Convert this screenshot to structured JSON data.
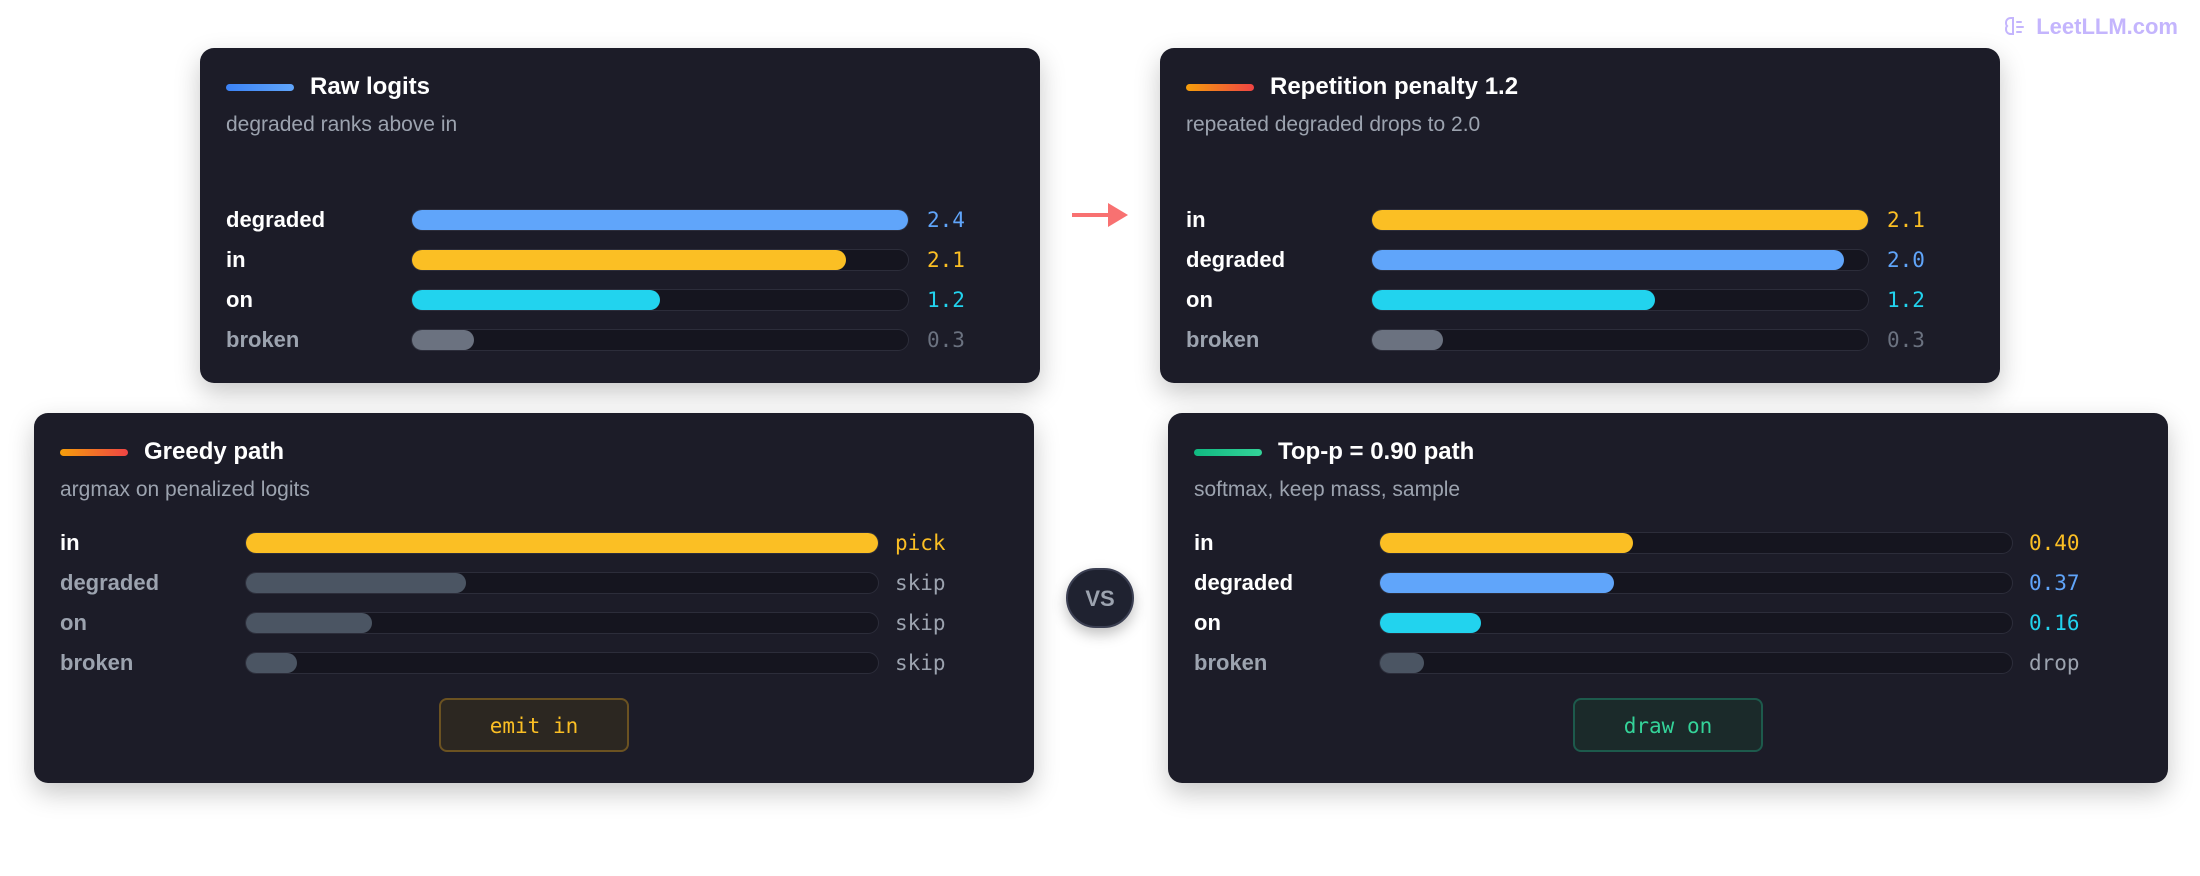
{
  "brand": {
    "text": "LeetLLM.com"
  },
  "arrow": {
    "color": "#f87171"
  },
  "vs_label": "VS",
  "panels": {
    "raw": {
      "title": "Raw logits",
      "subtitle": "degraded ranks above in",
      "accent": [
        "#3b82f6",
        "#60a5fa"
      ],
      "max": 2.4,
      "rows": [
        {
          "label": "degraded",
          "value": 2.4,
          "value_text": "2.4",
          "color": "#60a5fa",
          "label_color": "#ffffff"
        },
        {
          "label": "in",
          "value": 2.1,
          "value_text": "2.1",
          "color": "#fbbf24",
          "label_color": "#ffffff"
        },
        {
          "label": "on",
          "value": 1.2,
          "value_text": "1.2",
          "color": "#22d3ee",
          "label_color": "#ffffff"
        },
        {
          "label": "broken",
          "value": 0.3,
          "value_text": "0.3",
          "color": "#6b7280",
          "label_color": "#9ca3af"
        }
      ]
    },
    "repetition": {
      "title": "Repetition penalty 1.2",
      "subtitle": "repeated degraded drops to 2.0",
      "accent": [
        "#f59e0b",
        "#ef4444"
      ],
      "max": 2.1,
      "rows": [
        {
          "label": "in",
          "value": 2.1,
          "value_text": "2.1",
          "color": "#fbbf24",
          "label_color": "#ffffff"
        },
        {
          "label": "degraded",
          "value": 2.0,
          "value_text": "2.0",
          "color": "#60a5fa",
          "label_color": "#ffffff"
        },
        {
          "label": "on",
          "value": 1.2,
          "value_text": "1.2",
          "color": "#22d3ee",
          "label_color": "#ffffff"
        },
        {
          "label": "broken",
          "value": 0.3,
          "value_text": "0.3",
          "color": "#6b7280",
          "label_color": "#9ca3af"
        }
      ]
    },
    "greedy": {
      "title": "Greedy path",
      "subtitle": "argmax on penalized logits",
      "accent": [
        "#f59e0b",
        "#ef4444"
      ],
      "max": 2.1,
      "rows": [
        {
          "label": "in",
          "value": 2.1,
          "value_text": "pick",
          "color": "#fbbf24",
          "label_color": "#ffffff",
          "value_color": "#fbbf24"
        },
        {
          "label": "degraded",
          "value": 0.73,
          "value_text": "skip",
          "color": "#4b5563",
          "label_color": "#9ca3af",
          "value_color": "#9ca3af"
        },
        {
          "label": "on",
          "value": 0.42,
          "value_text": "skip",
          "color": "#4b5563",
          "label_color": "#9ca3af",
          "value_color": "#9ca3af"
        },
        {
          "label": "broken",
          "value": 0.17,
          "value_text": "skip",
          "color": "#4b5563",
          "label_color": "#9ca3af",
          "value_color": "#9ca3af"
        }
      ],
      "emit": "emit in"
    },
    "topp": {
      "title": "Top-p = 0.90 path",
      "subtitle": "softmax, keep mass, sample",
      "accent": [
        "#10b981",
        "#34d399"
      ],
      "max": 1.0,
      "rows": [
        {
          "label": "in",
          "value": 0.4,
          "value_text": "0.40",
          "color": "#fbbf24",
          "label_color": "#ffffff"
        },
        {
          "label": "degraded",
          "value": 0.37,
          "value_text": "0.37",
          "color": "#60a5fa",
          "label_color": "#ffffff"
        },
        {
          "label": "on",
          "value": 0.16,
          "value_text": "0.16",
          "color": "#22d3ee",
          "label_color": "#ffffff"
        },
        {
          "label": "broken",
          "value": 0.07,
          "value_text": "drop",
          "color": "#4b5563",
          "label_color": "#9ca3af",
          "value_color": "#9ca3af"
        }
      ],
      "emit": "draw on"
    }
  }
}
